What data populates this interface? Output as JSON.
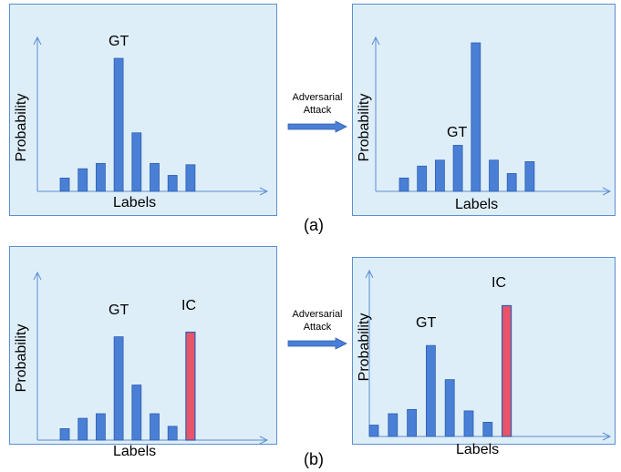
{
  "colors": {
    "bar": "#4a7fd6",
    "bar_stroke": "#2f5fae",
    "ic_bar": "#e8546a",
    "panel_bg": "#deeef9",
    "panel_border": "#5b8fd0",
    "axis": "#5b8fd0"
  },
  "captions": {
    "a": "(a)",
    "b": "(b)"
  },
  "arrows": {
    "a": {
      "line1": "Adversarial",
      "line2": "Attack"
    },
    "b": {
      "line1": "Adversarial",
      "line2": "Attack"
    }
  },
  "chart_data": [
    {
      "type": "bar",
      "panel": "a-before",
      "xlabel": "Labels",
      "ylabel": "Probability",
      "values": [
        0.1,
        0.17,
        0.21,
        1.0,
        0.44,
        0.21,
        0.12,
        0.2
      ],
      "gt_index": 3,
      "ic_index": null,
      "annotations": {
        "gt": "GT"
      }
    },
    {
      "type": "bar",
      "panel": "a-after",
      "xlabel": "Labels",
      "ylabel": "Probability",
      "values": [
        0.09,
        0.17,
        0.21,
        0.31,
        1.0,
        0.21,
        0.12,
        0.2
      ],
      "gt_index": 3,
      "ic_index": null,
      "annotations": {
        "gt": "GT"
      }
    },
    {
      "type": "bar",
      "panel": "b-before",
      "xlabel": "Labels",
      "ylabel": "Probability",
      "values": [
        0.1,
        0.19,
        0.23,
        0.9,
        0.48,
        0.23,
        0.12,
        0.94
      ],
      "gt_index": 3,
      "ic_index": 7,
      "annotations": {
        "gt": "GT",
        "ic": "IC"
      }
    },
    {
      "type": "bar",
      "panel": "b-after",
      "xlabel": "Labels",
      "ylabel": "Probability",
      "values": [
        0.08,
        0.16,
        0.19,
        0.64,
        0.4,
        0.18,
        0.1,
        0.92
      ],
      "gt_index": 3,
      "ic_index": 7,
      "annotations": {
        "gt": "GT",
        "ic": "IC"
      }
    }
  ]
}
